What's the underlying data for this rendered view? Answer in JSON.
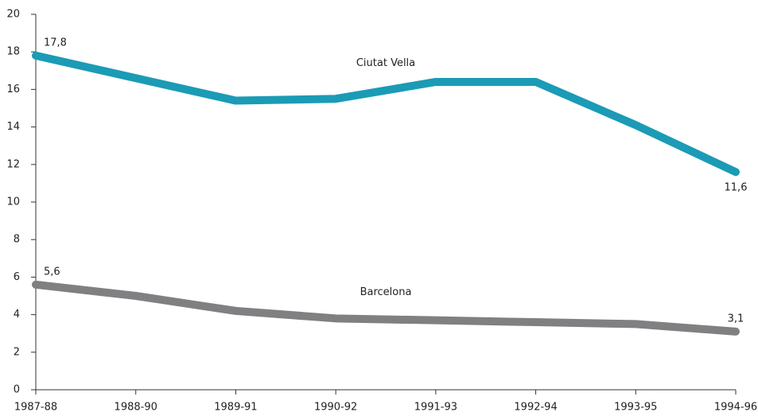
{
  "chart_data": {
    "type": "line",
    "categories": [
      "1987-88",
      "1988-90",
      "1989-91",
      "1990-92",
      "1991-93",
      "1992-94",
      "1993-95",
      "1994-96"
    ],
    "series": [
      {
        "name": "Ciutat Vella",
        "color": "#1b9bb5",
        "values": [
          17.8,
          16.6,
          15.4,
          15.5,
          16.4,
          16.4,
          14.1,
          11.6
        ],
        "value_labels": [
          "17,8",
          null,
          null,
          null,
          null,
          null,
          null,
          "11,6"
        ]
      },
      {
        "name": "Barcelona",
        "color": "#808083",
        "values": [
          5.6,
          5.0,
          4.2,
          3.8,
          3.7,
          3.6,
          3.5,
          3.1
        ],
        "value_labels": [
          "5,6",
          null,
          null,
          null,
          null,
          null,
          null,
          "3,1"
        ]
      }
    ],
    "ylim": [
      0,
      20
    ],
    "yticks": [
      0,
      2,
      4,
      6,
      8,
      10,
      12,
      14,
      16,
      18,
      20
    ],
    "grid": false
  }
}
